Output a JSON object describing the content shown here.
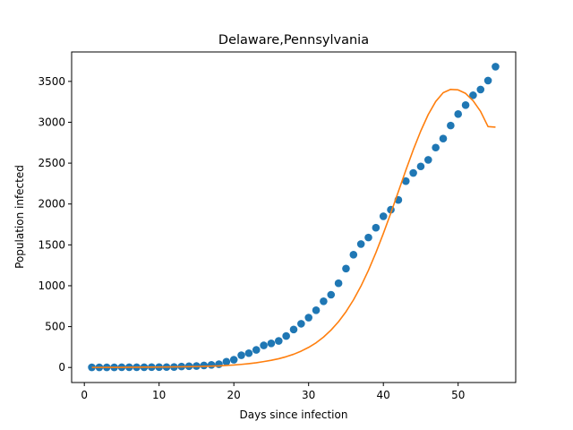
{
  "chart_data": {
    "type": "scatter",
    "title": "Delaware,Pennsylvania",
    "xlabel": "Days since infection",
    "ylabel": "Population infected",
    "xlim": [
      -1.7,
      57.7
    ],
    "ylim": [
      -184,
      3860
    ],
    "xticks": [
      0,
      10,
      20,
      30,
      40,
      50
    ],
    "yticks": [
      0,
      500,
      1000,
      1500,
      2000,
      2500,
      3000,
      3500
    ],
    "grid": false,
    "series": [
      {
        "kind": "scatter",
        "color": "#1f77b4",
        "x": [
          1,
          2,
          3,
          4,
          5,
          6,
          7,
          8,
          9,
          10,
          11,
          12,
          13,
          14,
          15,
          16,
          17,
          18,
          19,
          20,
          21,
          22,
          23,
          24,
          25,
          26,
          27,
          28,
          29,
          30,
          31,
          32,
          33,
          34,
          35,
          36,
          37,
          38,
          39,
          40,
          41,
          42,
          43,
          44,
          45,
          46,
          47,
          48,
          49,
          50,
          51,
          52,
          53,
          54,
          55
        ],
        "y": [
          2,
          2,
          2,
          2,
          3,
          3,
          3,
          3,
          4,
          4,
          5,
          6,
          12,
          15,
          18,
          25,
          32,
          40,
          70,
          95,
          150,
          175,
          215,
          270,
          295,
          325,
          385,
          465,
          535,
          610,
          700,
          810,
          890,
          1030,
          1210,
          1380,
          1510,
          1590,
          1710,
          1850,
          1930,
          2050,
          2280,
          2380,
          2460,
          2540,
          2690,
          2800,
          2960,
          3100,
          3210,
          3330,
          3400,
          3510,
          3680
        ]
      },
      {
        "kind": "line",
        "color": "#ff7f0e",
        "x": [
          1,
          2,
          3,
          4,
          5,
          6,
          7,
          8,
          9,
          10,
          11,
          12,
          13,
          14,
          15,
          16,
          17,
          18,
          19,
          20,
          21,
          22,
          23,
          24,
          25,
          26,
          27,
          28,
          29,
          30,
          31,
          32,
          33,
          34,
          35,
          36,
          37,
          38,
          39,
          40,
          41,
          42,
          43,
          44,
          45,
          46,
          47,
          48,
          49,
          50,
          51,
          52,
          53,
          54,
          55
        ],
        "y": [
          1,
          1,
          2,
          2,
          2,
          3,
          3,
          4,
          4,
          5,
          6,
          7,
          8,
          10,
          12,
          14,
          17,
          20,
          25,
          30,
          38,
          47,
          58,
          72,
          88,
          107,
          132,
          162,
          200,
          246,
          302,
          372,
          458,
          560,
          682,
          827,
          995,
          1188,
          1404,
          1640,
          1890,
          2150,
          2412,
          2663,
          2893,
          3094,
          3254,
          3361,
          3402,
          3396,
          3353,
          3263,
          3133,
          2947,
          2940
        ]
      }
    ]
  }
}
